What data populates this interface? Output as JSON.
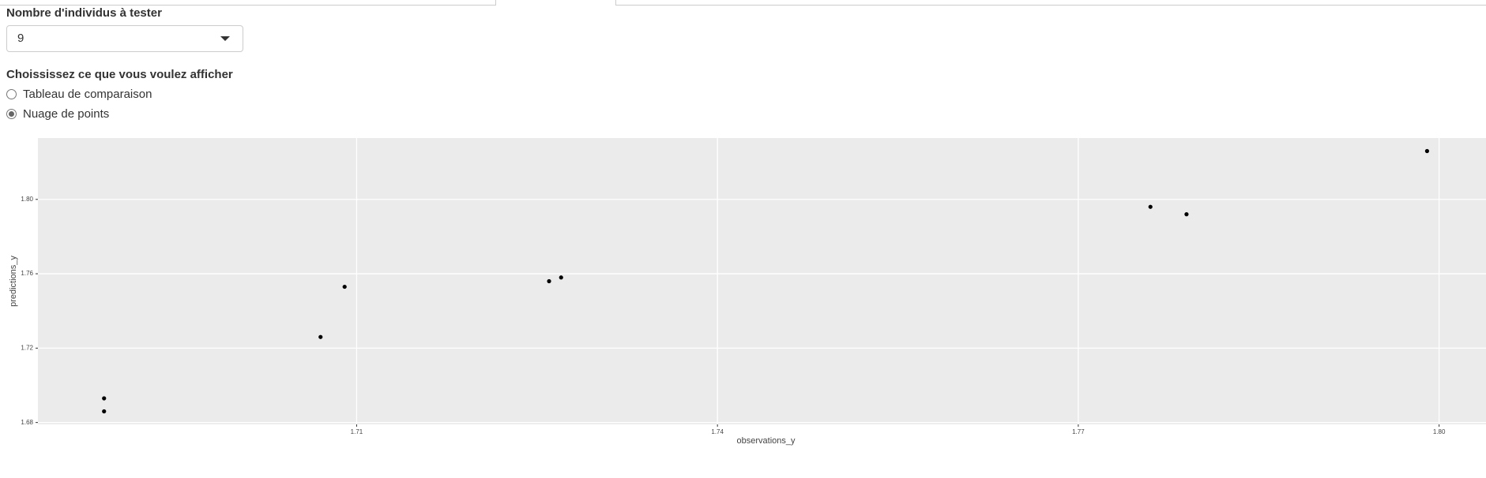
{
  "form": {
    "count_label": "Nombre d'individus à tester",
    "count_value": "9",
    "display_label": "Choississez ce que vous voulez afficher",
    "options": [
      {
        "label": "Tableau de comparaison",
        "selected": false
      },
      {
        "label": "Nuage de points",
        "selected": true
      }
    ]
  },
  "chart_data": {
    "type": "scatter",
    "x_label": "observations_y",
    "y_label": "predictions_y",
    "series": [
      {
        "name": "predictions",
        "color": "#000000",
        "x": [
          1.689,
          1.689,
          1.707,
          1.709,
          1.726,
          1.727,
          1.776,
          1.779,
          1.799
        ],
        "values": [
          1.693,
          1.686,
          1.726,
          1.753,
          1.756,
          1.758,
          1.796,
          1.792,
          1.826
        ]
      }
    ],
    "xlim": [
      1.6835,
      1.8039
    ],
    "xticks": [
      1.71,
      1.74,
      1.77,
      {
        "value": 1.8,
        "label": "1.80"
      }
    ],
    "ylim": [
      1.679,
      1.833
    ],
    "yticks": [
      1.68,
      1.72,
      1.76,
      {
        "value": 1.8,
        "label": "1.80"
      }
    ],
    "grid": true
  }
}
